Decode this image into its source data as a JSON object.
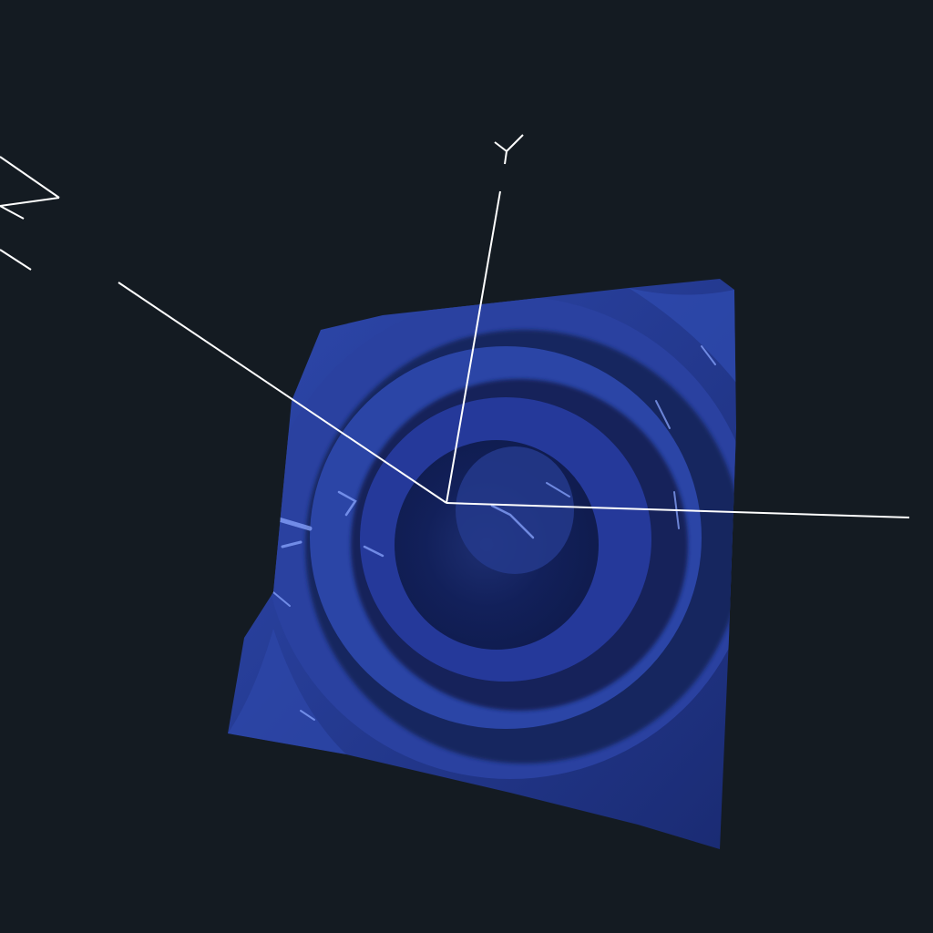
{
  "viewport": {
    "background": "#141b22",
    "mesh_color": "#243a8c",
    "mesh_shadow": "#0f1c4a",
    "mesh_highlight": "#3a55b8",
    "axis_color": "#ffffff"
  },
  "axes": {
    "y_label": "Y",
    "z_label": "Z"
  },
  "mesh": {
    "surface": "rippled-square-plane",
    "ring_count": 3
  }
}
